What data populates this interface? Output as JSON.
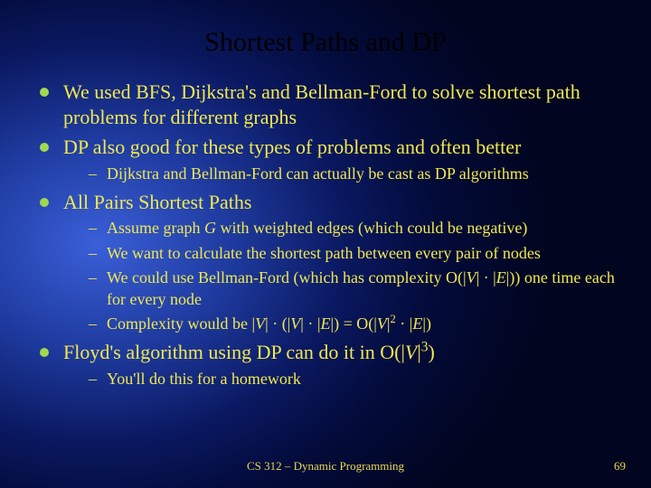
{
  "title": "Shortest Paths and DP",
  "bullets": {
    "b1": "We used BFS, Dijkstra's and Bellman-Ford to solve shortest path problems for different graphs",
    "b2": "DP also good for these types of problems and often better",
    "b2_sub1": "Dijkstra and Bellman-Ford can actually be cast as DP algorithms",
    "b3": "All Pairs Shortest Paths",
    "b3_sub1_a": "Assume graph ",
    "b3_sub1_g": "G",
    "b3_sub1_b": " with weighted edges (which could be negative)",
    "b3_sub2": "We want to calculate the shortest path between every pair of nodes",
    "b3_sub3_a": "We could use Bellman-Ford (which has complexity O(|",
    "b3_sub3_v": "V",
    "b3_sub3_b": "| · |",
    "b3_sub3_e": "E",
    "b3_sub3_c": "|)) one time each for every node",
    "b3_sub4_a": "Complexity would be |",
    "b3_sub4_v1": "V",
    "b3_sub4_b": "| · (|",
    "b3_sub4_v2": "V",
    "b3_sub4_c": "| · |",
    "b3_sub4_e1": "E",
    "b3_sub4_d": "|) = O(|",
    "b3_sub4_v3": "V",
    "b3_sub4_e": "|",
    "b3_sub4_sup": "2",
    "b3_sub4_f": " · |",
    "b3_sub4_e2": "E",
    "b3_sub4_g": "|)",
    "b4_a": "Floyd's algorithm using DP can do it in O(|",
    "b4_v": "V",
    "b4_b": "|",
    "b4_sup": "3",
    "b4_c": ")",
    "b4_sub1": "You'll do this for a homework"
  },
  "footer": "CS 312 – Dynamic Programming",
  "page": "69"
}
